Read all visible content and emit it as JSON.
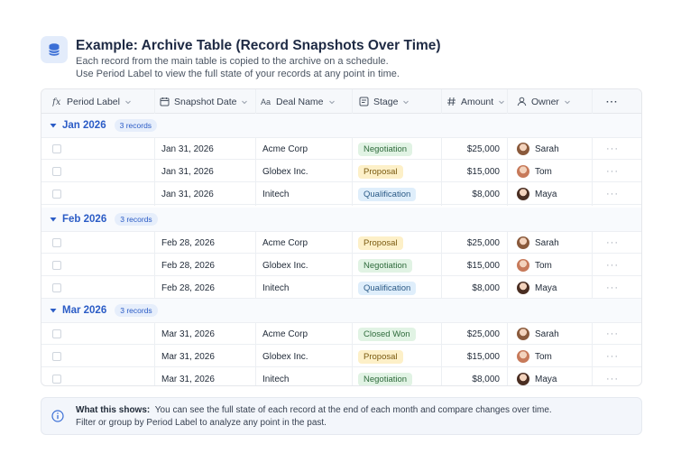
{
  "header": {
    "title": "Example: Archive Table (Record Snapshots Over Time)",
    "description_line1": "Each record from the main table is copied to the archive on a schedule.",
    "description_line2": "Use Period Label to view the full state of your records at any point in time."
  },
  "columns": [
    {
      "label": "Period Label",
      "icon": "formula-icon"
    },
    {
      "label": "Snapshot Date",
      "icon": "calendar-icon"
    },
    {
      "label": "Deal Name",
      "icon": "text-icon"
    },
    {
      "label": "Stage",
      "icon": "select-icon"
    },
    {
      "label": "Amount",
      "icon": "hash-icon"
    },
    {
      "label": "Owner",
      "icon": "user-icon"
    },
    {
      "label": "···",
      "icon": "more-icon"
    }
  ],
  "groups": [
    {
      "label": "Jan 2026",
      "count": "3 records",
      "rows": [
        {
          "date": "Jan 31, 2026",
          "deal": "Acme Corp",
          "stage": "Negotiation",
          "amount": "$25,000",
          "owner": "Sarah"
        },
        {
          "date": "Jan 31, 2026",
          "deal": "Globex Inc.",
          "stage": "Proposal",
          "amount": "$15,000",
          "owner": "Tom"
        },
        {
          "date": "Jan 31, 2026",
          "deal": "Initech",
          "stage": "Qualification",
          "amount": "$8,000",
          "owner": "Maya"
        }
      ]
    },
    {
      "label": "Feb 2026",
      "count": "3 records",
      "rows": [
        {
          "date": "Feb 28, 2026",
          "deal": "Acme Corp",
          "stage": "Proposal",
          "amount": "$25,000",
          "owner": "Sarah"
        },
        {
          "date": "Feb 28, 2026",
          "deal": "Globex Inc.",
          "stage": "Negotiation",
          "amount": "$15,000",
          "owner": "Tom"
        },
        {
          "date": "Feb 28, 2026",
          "deal": "Initech",
          "stage": "Qualification",
          "amount": "$8,000",
          "owner": "Maya"
        }
      ]
    },
    {
      "label": "Mar 2026",
      "count": "3 records",
      "rows": [
        {
          "date": "Mar 31, 2026",
          "deal": "Acme Corp",
          "stage": "Closed Won",
          "amount": "$25,000",
          "owner": "Sarah"
        },
        {
          "date": "Mar 31, 2026",
          "deal": "Globex Inc.",
          "stage": "Proposal",
          "amount": "$15,000",
          "owner": "Tom"
        },
        {
          "date": "Mar 31, 2026",
          "deal": "Initech",
          "stage": "Negotiation",
          "amount": "$8,000",
          "owner": "Maya"
        }
      ]
    }
  ],
  "row_more": "···",
  "stage_colors": {
    "Negotiation": {
      "bg": "#e1f3e4",
      "fg": "#2f6b3c"
    },
    "Proposal": {
      "bg": "#fdf0c8",
      "fg": "#7a5a10"
    },
    "Qualification": {
      "bg": "#dfeefb",
      "fg": "#2b5a86"
    },
    "Closed Won": {
      "bg": "#e1f3e4",
      "fg": "#2f6b3c"
    }
  },
  "owner_colors": {
    "Sarah": "#8a5a3c",
    "Tom": "#c77a5a",
    "Maya": "#4a2e22"
  },
  "info": {
    "title": "What this shows:",
    "line1": "You can see the full state of each record at the end of each month and compare changes over time.",
    "line2": "Filter or group by Period Label to analyze any point in the past."
  }
}
